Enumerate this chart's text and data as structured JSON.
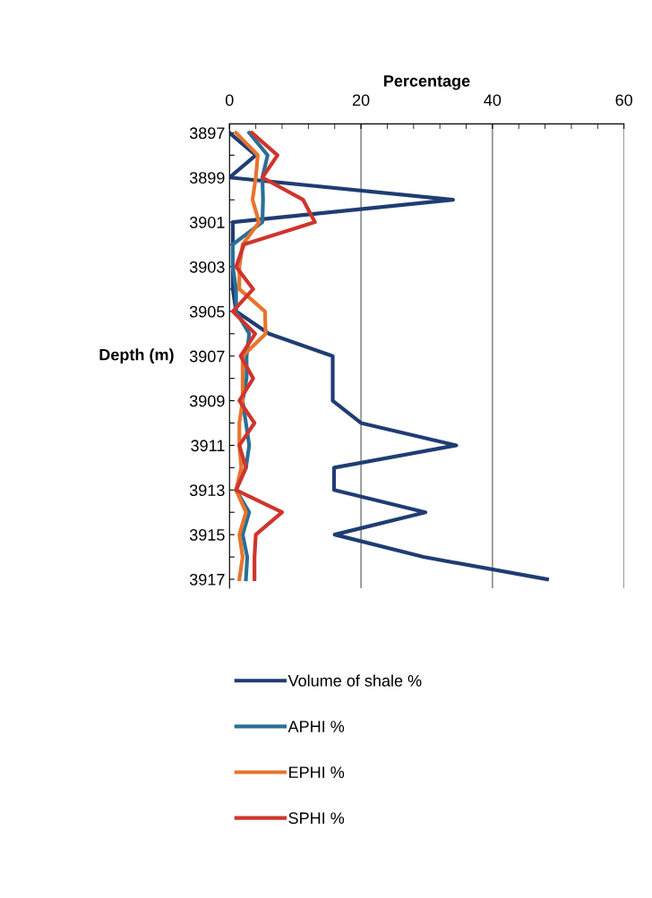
{
  "chart_data": {
    "type": "line",
    "orientation": "horizontal",
    "xlabel": "Percentage",
    "ylabel": "Depth (m)",
    "categories": [
      "3897",
      null,
      "3899",
      null,
      "3901",
      null,
      "3903",
      null,
      "3905",
      null,
      "3907",
      null,
      "3909",
      null,
      "3911",
      null,
      "3913",
      null,
      "3915",
      null,
      "3917"
    ],
    "series": [
      {
        "name": "Volume of shale %",
        "color": "#1f3d73",
        "values": [
          0,
          4,
          0,
          34,
          0.5,
          0.5,
          0.5,
          0.5,
          1,
          6,
          15.7,
          15.7,
          15.7,
          20,
          34.5,
          15.9,
          15.9,
          29.8,
          16,
          29.5,
          48.3
        ]
      },
      {
        "name": "APHI %",
        "color": "#2a6f97",
        "values": [
          3,
          5.8,
          5,
          5.1,
          5,
          0.5,
          0.5,
          1,
          1,
          3,
          2.6,
          2.6,
          2,
          2.5,
          3,
          2.5,
          1,
          3,
          2,
          2.7,
          2.5
        ]
      },
      {
        "name": "EPHI %",
        "color": "#e8742c",
        "values": [
          1,
          4.3,
          4,
          3.5,
          4.5,
          2,
          1.5,
          1.5,
          5.4,
          5.5,
          2,
          2,
          2,
          1.5,
          1.5,
          1.8,
          1,
          2.5,
          1.5,
          2,
          1.5
        ]
      },
      {
        "name": "SPHI %",
        "color": "#d0342c",
        "values": [
          3.4,
          7.3,
          5,
          11.2,
          13,
          2.2,
          1,
          3.6,
          0.5,
          3.9,
          1.7,
          3.6,
          1.5,
          3.8,
          1.5,
          2.5,
          1,
          8,
          4,
          3.8,
          3.8
        ]
      }
    ],
    "xlim": [
      0,
      60
    ],
    "xticks": [
      0,
      {
        "value": 4,
        "label": null
      },
      {
        "value": 8,
        "label": null
      },
      {
        "value": 12,
        "label": null
      },
      {
        "value": 16,
        "label": null
      },
      20,
      {
        "value": 24,
        "label": null
      },
      {
        "value": 28,
        "label": null
      },
      {
        "value": 32,
        "label": null
      },
      {
        "value": 36,
        "label": null
      },
      40,
      {
        "value": 44,
        "label": null
      },
      {
        "value": 48,
        "label": null
      },
      {
        "value": 52,
        "label": null
      },
      {
        "value": 56,
        "label": null
      },
      60
    ],
    "grid": "x",
    "legend": "bottom",
    "marker": "none",
    "line_style": "solid"
  }
}
